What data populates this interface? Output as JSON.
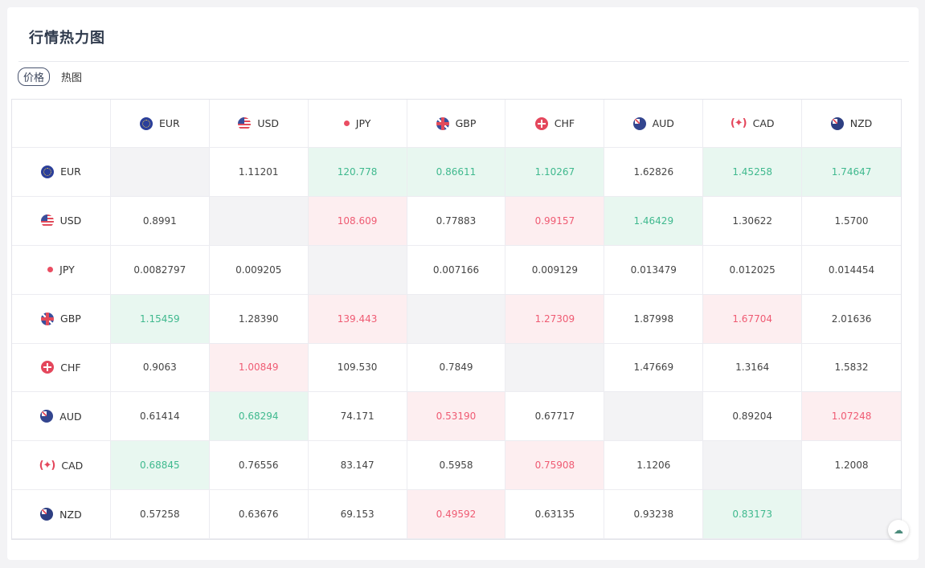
{
  "panel": {
    "title": "行情热力图"
  },
  "tabs": [
    {
      "label": "价格",
      "active": true
    },
    {
      "label": "热图",
      "active": false
    }
  ],
  "colors": {
    "up": "#3fb98e",
    "up_bg": "#e8f7f0",
    "down": "#ef5b73",
    "down_bg": "#fdeef0",
    "self_bg": "#f3f3f5"
  },
  "currencies": [
    {
      "code": "EUR",
      "icon": "eu-flag-icon"
    },
    {
      "code": "USD",
      "icon": "us-flag-icon"
    },
    {
      "code": "JPY",
      "icon": "jp-flag-icon"
    },
    {
      "code": "GBP",
      "icon": "uk-flag-icon"
    },
    {
      "code": "CHF",
      "icon": "ch-flag-icon"
    },
    {
      "code": "AUD",
      "icon": "au-flag-icon"
    },
    {
      "code": "CAD",
      "icon": "ca-flag-icon"
    },
    {
      "code": "NZD",
      "icon": "nz-flag-icon"
    }
  ],
  "cad_glyph": "(✦)",
  "rows": [
    {
      "values": [
        "",
        "1.11201",
        "120.778",
        "0.86611",
        "1.10267",
        "1.62826",
        "1.45258",
        "1.74647"
      ],
      "states": [
        "self",
        "",
        "up",
        "up",
        "up",
        "",
        "up",
        "up"
      ]
    },
    {
      "values": [
        "0.8991",
        "",
        "108.609",
        "0.77883",
        "0.99157",
        "1.46429",
        "1.30622",
        "1.5700"
      ],
      "states": [
        "",
        "self",
        "down",
        "",
        "down",
        "up",
        "",
        ""
      ]
    },
    {
      "values": [
        "0.0082797",
        "0.009205",
        "",
        "0.007166",
        "0.009129",
        "0.013479",
        "0.012025",
        "0.014454"
      ],
      "states": [
        "",
        "",
        "self",
        "",
        "",
        "",
        "",
        ""
      ]
    },
    {
      "values": [
        "1.15459",
        "1.28390",
        "139.443",
        "",
        "1.27309",
        "1.87998",
        "1.67704",
        "2.01636"
      ],
      "states": [
        "up",
        "",
        "down",
        "self",
        "down",
        "",
        "down",
        ""
      ]
    },
    {
      "values": [
        "0.9063",
        "1.00849",
        "109.530",
        "0.7849",
        "",
        "1.47669",
        "1.3164",
        "1.5832"
      ],
      "states": [
        "",
        "down",
        "",
        "",
        "self",
        "",
        "",
        ""
      ]
    },
    {
      "values": [
        "0.61414",
        "0.68294",
        "74.171",
        "0.53190",
        "0.67717",
        "",
        "0.89204",
        "1.07248"
      ],
      "states": [
        "",
        "up",
        "",
        "down",
        "",
        "self",
        "",
        "down"
      ]
    },
    {
      "values": [
        "0.68845",
        "0.76556",
        "83.147",
        "0.5958",
        "0.75908",
        "1.1206",
        "",
        "1.2008"
      ],
      "states": [
        "up",
        "",
        "",
        "",
        "down",
        "",
        "self",
        ""
      ]
    },
    {
      "values": [
        "0.57258",
        "0.63676",
        "69.153",
        "0.49592",
        "0.63135",
        "0.93238",
        "0.83173",
        ""
      ],
      "states": [
        "",
        "",
        "",
        "down",
        "",
        "",
        "up",
        "self"
      ]
    }
  ],
  "float_button": {
    "icon": "cloud-icon",
    "glyph": "☁"
  }
}
